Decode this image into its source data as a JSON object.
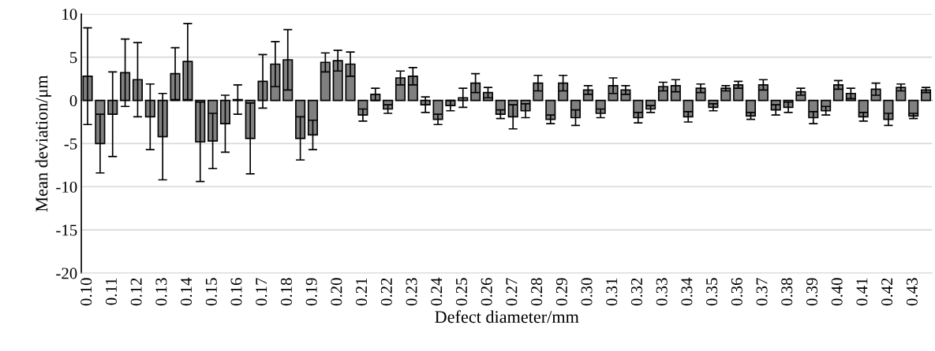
{
  "chart_data": {
    "type": "bar",
    "xlabel": "Defect diameter/mm",
    "ylabel": "Mean deviation/μm",
    "categories": [
      "0.10",
      null,
      "0.11",
      null,
      "0.12",
      null,
      "0.13",
      null,
      "0.14",
      null,
      "0.15",
      null,
      "0.16",
      null,
      "0.17",
      null,
      "0.18",
      null,
      "0.19",
      null,
      "0.20",
      null,
      "0.21",
      null,
      "0.22",
      null,
      "0.23",
      null,
      "0.24",
      null,
      "0.25",
      null,
      "0.26",
      null,
      "0.27",
      null,
      "0.28",
      null,
      "0.29",
      null,
      "0.30",
      null,
      "0.31",
      null,
      "0.32",
      null,
      "0.33",
      null,
      "0.34",
      null,
      "0.35",
      null,
      "0.36",
      null,
      "0.37",
      null,
      "0.38",
      null,
      "0.39",
      null,
      "0.40",
      null,
      "0.41",
      null,
      "0.42",
      null,
      "0.43",
      null
    ],
    "values": [
      2.8,
      -5.0,
      -1.6,
      3.2,
      2.4,
      -1.9,
      -4.2,
      3.1,
      4.5,
      -4.8,
      -4.7,
      -2.7,
      0.1,
      -4.4,
      2.2,
      4.2,
      4.7,
      -4.4,
      -4.0,
      4.4,
      4.6,
      4.2,
      -1.7,
      0.7,
      -1.0,
      2.6,
      2.8,
      -0.5,
      -2.2,
      -0.6,
      0.3,
      2.0,
      0.9,
      -1.6,
      -1.9,
      -1.2,
      2.0,
      -2.2,
      2.0,
      -2.0,
      1.2,
      -1.5,
      1.7,
      1.2,
      -2.0,
      -1.0,
      1.6,
      1.7,
      -1.9,
      1.4,
      -0.8,
      1.4,
      1.8,
      -1.8,
      1.8,
      -1.1,
      -0.8,
      1.0,
      -2.0,
      -1.2,
      1.8,
      0.8,
      -1.9,
      1.3,
      -2.2,
      1.5,
      -1.8,
      1.2
    ],
    "errors": [
      5.6,
      3.4,
      4.9,
      3.9,
      4.3,
      3.8,
      5.0,
      3.0,
      4.4,
      4.6,
      3.2,
      3.3,
      1.7,
      4.1,
      3.1,
      2.6,
      3.5,
      2.5,
      1.7,
      1.1,
      1.2,
      1.4,
      0.7,
      0.7,
      0.5,
      0.8,
      1.0,
      0.9,
      0.6,
      0.6,
      1.1,
      1.1,
      0.6,
      0.5,
      1.4,
      0.8,
      0.9,
      0.5,
      0.9,
      0.9,
      0.5,
      0.5,
      0.9,
      0.5,
      0.6,
      0.4,
      0.5,
      0.7,
      0.6,
      0.5,
      0.4,
      0.3,
      0.4,
      0.4,
      0.6,
      0.6,
      0.6,
      0.4,
      0.7,
      0.5,
      0.5,
      0.6,
      0.5,
      0.7,
      0.7,
      0.4,
      0.3,
      0.3
    ],
    "color": "#808080",
    "ylim": [
      -20,
      10
    ],
    "yticks": [
      -20,
      -15,
      -10,
      -5,
      0,
      5,
      10
    ],
    "grid": "y",
    "legend": false
  }
}
